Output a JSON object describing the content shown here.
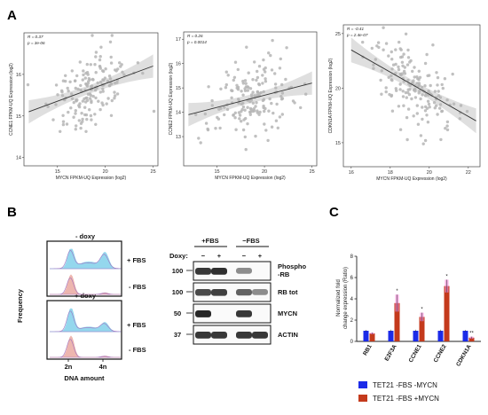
{
  "panels": {
    "a": "A",
    "b": "B",
    "c": "C"
  },
  "scatter_plots": [
    {
      "type": "scatter",
      "xlabel": "MYCN  FPKM-UQ Expression (log2)",
      "ylabel": "CCNE1  FPKM-UQ Expression (log2)",
      "stat_r": "R = 0.37",
      "stat_p": "p = 3e-06",
      "xlim": [
        11.5,
        25.5
      ],
      "ylim": [
        13.8,
        17.0
      ],
      "xticks": [
        "15",
        "20",
        "25"
      ],
      "xtick_values": [
        15,
        20,
        25
      ],
      "yticks": [
        "14",
        "15",
        "16"
      ],
      "ytick_values": [
        14,
        15,
        16
      ],
      "trend": [
        [
          12,
          15.1
        ],
        [
          25,
          16.2
        ]
      ],
      "seed": 11,
      "n": 170
    },
    {
      "type": "scatter",
      "xlabel": "MYCN  FPKM-UQ Expression (log2)",
      "ylabel": "CCNE2  FPKM-UQ Expression (log2)",
      "stat_r": "R = 0.26",
      "stat_p": "p = 0.0014",
      "xlim": [
        11.5,
        25.5
      ],
      "ylim": [
        11.8,
        17.3
      ],
      "xticks": [
        "15",
        "20",
        "25"
      ],
      "xtick_values": [
        15,
        20,
        25
      ],
      "yticks": [
        "13",
        "14",
        "15",
        "16",
        "17"
      ],
      "ytick_values": [
        13,
        14,
        15,
        16,
        17
      ],
      "trend": [
        [
          12,
          13.9
        ],
        [
          25,
          15.2
        ]
      ],
      "seed": 29,
      "n": 170
    },
    {
      "type": "scatter",
      "xlabel": "MYCN  FPKM-UQ Expression (log2)",
      "ylabel": "CDKN1A  FPKM-UQ Expression (log2)",
      "stat_r": "R = -0.41",
      "stat_p": "p = 2.4e-07",
      "xlim": [
        15.6,
        22.6
      ],
      "ylim": [
        12.8,
        25.8
      ],
      "xticks": [
        "16",
        "18",
        "20",
        "22"
      ],
      "xtick_values": [
        16,
        18,
        20,
        22
      ],
      "yticks": [
        "15",
        "20",
        "25"
      ],
      "ytick_values": [
        15,
        20,
        25
      ],
      "trend": [
        [
          16,
          23.5
        ],
        [
          22.4,
          17.0
        ]
      ],
      "seed": 47,
      "n": 170
    }
  ],
  "flow": {
    "group_top": "- doxy",
    "group_bottom": "+ doxy",
    "row_plus": "+ FBS",
    "row_minus": "- FBS",
    "row_plus_2": "+ FBS",
    "row_minus_2": "- FBS",
    "ylabel": "Frequency",
    "xlabel": "DNA amount",
    "x_tick_2n": "2n",
    "x_tick_4n": "4n",
    "color_cycling": "#3db8e0",
    "color_starved": "#e07b6e"
  },
  "blot": {
    "group_plus": "+FBS",
    "group_minus": "−FBS",
    "doxy_label": "Doxy:",
    "lane_signs": [
      "−",
      "+",
      "−",
      "+"
    ],
    "bands": [
      {
        "label": "Phospho\n-RB",
        "label_1": "Phospho",
        "label_2": "-RB",
        "marker": "100",
        "intensity": [
          0.85,
          0.9,
          0.35,
          0.05
        ]
      },
      {
        "label": "RB tot",
        "marker": "100",
        "intensity": [
          0.75,
          0.8,
          0.6,
          0.35
        ]
      },
      {
        "label": "MYCN",
        "marker": "50",
        "intensity": [
          0.95,
          0.05,
          0.85,
          0.05
        ]
      },
      {
        "label": "ACTIN",
        "marker": "37",
        "intensity": [
          0.85,
          0.85,
          0.85,
          0.85
        ]
      }
    ]
  },
  "chart_data": {
    "type": "bar",
    "categories": [
      "RB1",
      "E2F3A",
      "CCNE1",
      "CCNE2",
      "CDKN1A"
    ],
    "ylabel_1": "Normalized fold",
    "ylabel_2": "change expression (Ratio)",
    "ylim": [
      0,
      8
    ],
    "yticks": [
      "0",
      "2",
      "4",
      "6",
      "8"
    ],
    "ytick_values": [
      0,
      2,
      4,
      6,
      8
    ],
    "series": [
      {
        "name": "TET21 -FBS -MYCN",
        "color": "#1c2be8",
        "values": [
          1.0,
          1.0,
          1.0,
          1.0,
          1.0
        ],
        "errors": [
          0.08,
          0.1,
          0.1,
          0.1,
          0.08
        ]
      },
      {
        "name": "TET21 -FBS +MYCN",
        "color": "#c43a1c",
        "values": [
          0.75,
          3.6,
          2.3,
          5.2,
          0.35
        ],
        "errors": [
          0.08,
          0.8,
          0.4,
          0.6,
          0.1
        ]
      }
    ],
    "significance": [
      "",
      "*",
      "*",
      "*",
      "**"
    ]
  }
}
